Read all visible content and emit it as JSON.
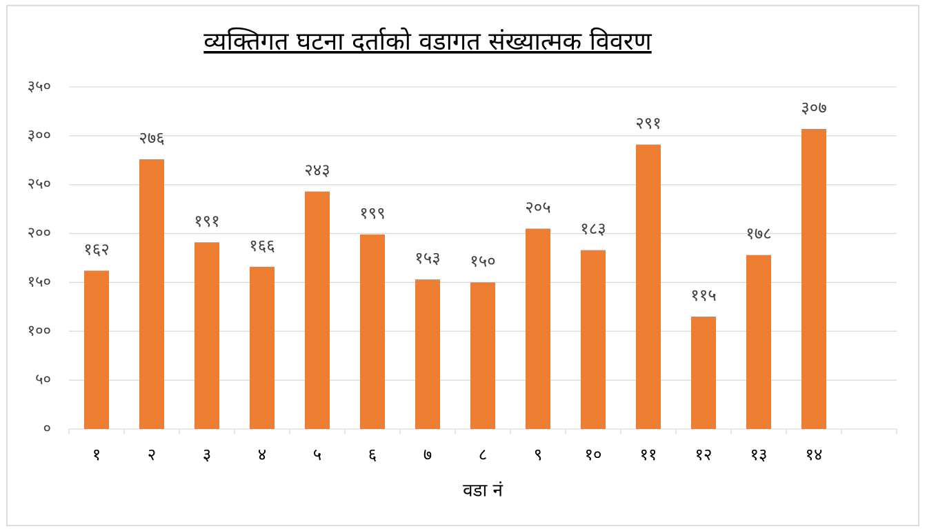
{
  "chart_data": {
    "type": "bar",
    "title": "व्यक्तिगत घटना दर्ताको वडागत संख्यात्मक विवरण",
    "x_label": "वडा नं",
    "categories": [
      "१",
      "२",
      "३",
      "४",
      "५",
      "६",
      "७",
      "८",
      "९",
      "१०",
      "११",
      "१२",
      "१३",
      "१४",
      null
    ],
    "values": [
      162,
      276,
      191,
      166,
      243,
      199,
      153,
      150,
      205,
      183,
      291,
      115,
      178,
      307,
      null
    ],
    "value_labels": [
      "१६२",
      "२७६",
      "१९१",
      "१६६",
      "२४३",
      "१९९",
      "१५३",
      "१५०",
      "२०५",
      "१८३",
      "२९१",
      "११५",
      "१७८",
      "३०७",
      null
    ],
    "color": "#ed7d31",
    "ylim": [
      0,
      350
    ],
    "yticks": [
      {
        "value": 0,
        "label": "०"
      },
      {
        "value": 50,
        "label": "५०"
      },
      {
        "value": 100,
        "label": "१००"
      },
      {
        "value": 150,
        "label": "१५०"
      },
      {
        "value": 200,
        "label": "२००"
      },
      {
        "value": 250,
        "label": "२५०"
      },
      {
        "value": 300,
        "label": "३००"
      },
      {
        "value": 350,
        "label": "३५०"
      }
    ],
    "grid": true
  }
}
